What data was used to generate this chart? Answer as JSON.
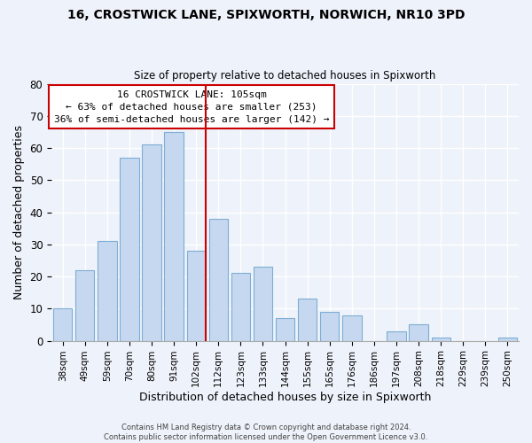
{
  "title": "16, CROSTWICK LANE, SPIXWORTH, NORWICH, NR10 3PD",
  "subtitle": "Size of property relative to detached houses in Spixworth",
  "xlabel": "Distribution of detached houses by size in Spixworth",
  "ylabel": "Number of detached properties",
  "footer_line1": "Contains HM Land Registry data © Crown copyright and database right 2024.",
  "footer_line2": "Contains public sector information licensed under the Open Government Licence v3.0.",
  "bar_labels": [
    "38sqm",
    "49sqm",
    "59sqm",
    "70sqm",
    "80sqm",
    "91sqm",
    "102sqm",
    "112sqm",
    "123sqm",
    "133sqm",
    "144sqm",
    "155sqm",
    "165sqm",
    "176sqm",
    "186sqm",
    "197sqm",
    "208sqm",
    "218sqm",
    "229sqm",
    "239sqm",
    "250sqm"
  ],
  "bar_values": [
    10,
    22,
    31,
    57,
    61,
    65,
    28,
    38,
    21,
    23,
    7,
    13,
    9,
    8,
    0,
    3,
    5,
    1,
    0,
    0,
    1
  ],
  "bar_color": "#c5d8f0",
  "bar_edge_color": "#7eadd4",
  "highlight_bar_index": 6,
  "highlight_line_color": "#cc0000",
  "annotation_title": "16 CROSTWICK LANE: 105sqm",
  "annotation_line1": "← 63% of detached houses are smaller (253)",
  "annotation_line2": "36% of semi-detached houses are larger (142) →",
  "annotation_box_edge_color": "#cc0000",
  "ylim": [
    0,
    80
  ],
  "yticks": [
    0,
    10,
    20,
    30,
    40,
    50,
    60,
    70,
    80
  ],
  "background_color": "#eef2fa",
  "grid_color": "#ffffff"
}
